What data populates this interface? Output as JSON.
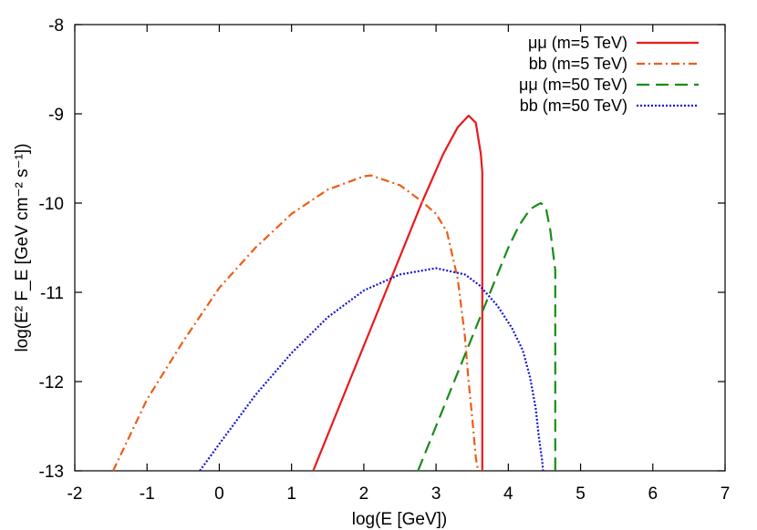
{
  "chart_data": {
    "type": "line",
    "title": "",
    "xlabel": "log(E [GeV])",
    "ylabel": "log(E² F_E [GeV cm⁻² s⁻¹])",
    "xlim": [
      -2,
      7
    ],
    "ylim": [
      -13,
      -8
    ],
    "x_ticks": [
      -2,
      -1,
      0,
      1,
      2,
      3,
      4,
      5,
      6,
      7
    ],
    "y_ticks": [
      -13,
      -12,
      -11,
      -10,
      -9,
      -8
    ],
    "grid": false,
    "legend_position": "top-right",
    "series": [
      {
        "name": "μμ (m=5 TeV)",
        "color": "#e8191d",
        "dash": "solid",
        "x": [
          1.3,
          1.8,
          2.3,
          2.8,
          3.1,
          3.3,
          3.45,
          3.55,
          3.62,
          3.64,
          3.64
        ],
        "y": [
          -13.0,
          -12.0,
          -11.0,
          -10.0,
          -9.45,
          -9.15,
          -9.02,
          -9.1,
          -9.45,
          -9.65,
          -13.0
        ]
      },
      {
        "name": "bb (m=5 TeV)",
        "color": "#ee5c14",
        "dash": "dashdot",
        "x": [
          -1.47,
          -1.0,
          -0.5,
          0.0,
          0.5,
          1.0,
          1.5,
          2.0,
          2.1,
          2.5,
          2.8,
          3.0,
          3.15,
          3.3,
          3.4,
          3.45,
          3.5,
          3.55,
          3.58
        ],
        "y": [
          -13.0,
          -12.2,
          -11.55,
          -10.95,
          -10.5,
          -10.12,
          -9.85,
          -9.7,
          -9.69,
          -9.8,
          -9.98,
          -10.12,
          -10.32,
          -10.85,
          -11.5,
          -12.0,
          -12.4,
          -12.85,
          -13.0
        ]
      },
      {
        "name": "μμ (m=50 TeV)",
        "color": "#188c18",
        "dash": "dashed",
        "x": [
          2.75,
          3.0,
          3.25,
          3.5,
          3.75,
          4.0,
          4.15,
          4.3,
          4.4,
          4.45,
          4.52,
          4.58,
          4.63,
          4.65,
          4.65
        ],
        "y": [
          -13.0,
          -12.5,
          -12.0,
          -11.5,
          -11.0,
          -10.5,
          -10.25,
          -10.07,
          -10.02,
          -10.0,
          -10.05,
          -10.3,
          -10.62,
          -10.75,
          -13.0
        ]
      },
      {
        "name": "bb (m=50 TeV)",
        "color": "#1414d8",
        "dash": "dotted",
        "x": [
          -0.27,
          0.0,
          0.5,
          1.0,
          1.5,
          2.0,
          2.5,
          3.0,
          3.4,
          3.6,
          3.85,
          4.05,
          4.2,
          4.3,
          4.38,
          4.42,
          4.47,
          4.48
        ],
        "y": [
          -13.0,
          -12.7,
          -12.15,
          -11.68,
          -11.28,
          -10.98,
          -10.8,
          -10.73,
          -10.8,
          -10.92,
          -11.15,
          -11.4,
          -11.65,
          -11.95,
          -12.3,
          -12.6,
          -12.9,
          -13.0
        ]
      }
    ]
  }
}
